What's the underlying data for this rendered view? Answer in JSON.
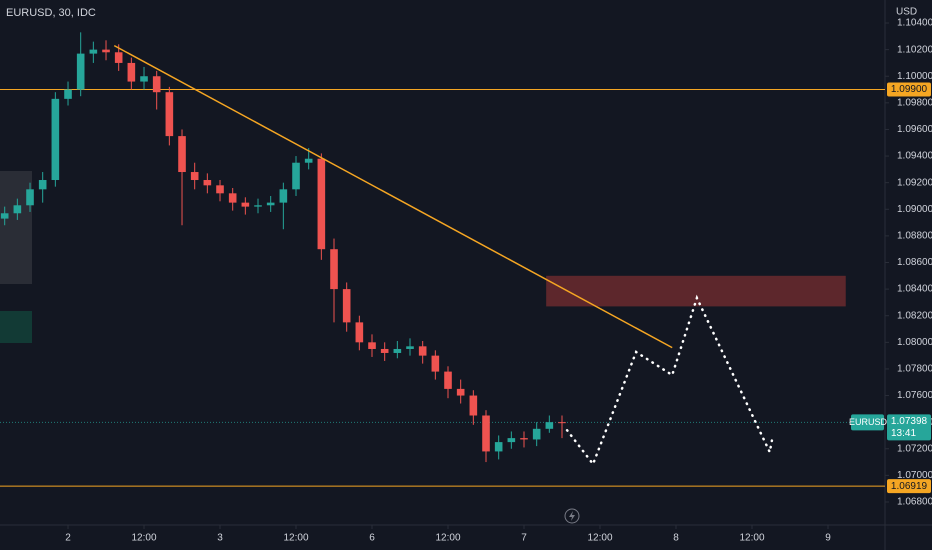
{
  "chart_data": {
    "type": "candlestick",
    "title": "EURUSD, 30, IDC",
    "y_axis_label": "USD",
    "up_color": "#26a69a",
    "down_color": "#ef5350",
    "xlim": [
      -10.74,
      129.0
    ],
    "ylim": [
      1.06627,
      1.10573
    ],
    "yticks": [
      {
        "value": 1.104,
        "label": "1.10400"
      },
      {
        "value": 1.102,
        "label": "1.10200"
      },
      {
        "value": 1.1,
        "label": "1.10000"
      },
      {
        "value": 1.098,
        "label": "1.09800"
      },
      {
        "value": 1.096,
        "label": "1.09600"
      },
      {
        "value": 1.094,
        "label": "1.09400"
      },
      {
        "value": 1.092,
        "label": "1.09200"
      },
      {
        "value": 1.09,
        "label": "1.09000"
      },
      {
        "value": 1.088,
        "label": "1.08800"
      },
      {
        "value": 1.086,
        "label": "1.08600"
      },
      {
        "value": 1.084,
        "label": "1.08400"
      },
      {
        "value": 1.082,
        "label": "1.08200"
      },
      {
        "value": 1.08,
        "label": "1.08000"
      },
      {
        "value": 1.078,
        "label": "1.07800"
      },
      {
        "value": 1.076,
        "label": "1.07600"
      },
      {
        "value": 1.074,
        "label": "1.07400"
      },
      {
        "value": 1.072,
        "label": "1.07200"
      },
      {
        "value": 1.07,
        "label": "1.07000"
      },
      {
        "value": 1.068,
        "label": "1.06800"
      }
    ],
    "xticks": [
      {
        "value": 0,
        "label": "2"
      },
      {
        "value": 12,
        "label": "12:00"
      },
      {
        "value": 24,
        "label": "3"
      },
      {
        "value": 36,
        "label": "12:00"
      },
      {
        "value": 48,
        "label": "6"
      },
      {
        "value": 60,
        "label": "12:00"
      },
      {
        "value": 72,
        "label": "7"
      },
      {
        "value": 84,
        "label": "12:00"
      },
      {
        "value": 96,
        "label": "8"
      },
      {
        "value": 108,
        "label": "12:00"
      },
      {
        "value": 120,
        "label": "9"
      }
    ],
    "x": [
      -10,
      -8,
      -6,
      -4,
      -2,
      0,
      2,
      4,
      6,
      8,
      10,
      12,
      14,
      16,
      18,
      20,
      22,
      24,
      26,
      28,
      30,
      32,
      34,
      36,
      38,
      40,
      42,
      44,
      46,
      48,
      50,
      52,
      54,
      56,
      58,
      60,
      62,
      64,
      66,
      68,
      70,
      72,
      74,
      76,
      78
    ],
    "open": [
      1.0893,
      1.0897,
      1.0903,
      1.0915,
      1.0922,
      1.0983,
      1.099,
      1.1017,
      1.102,
      1.1018,
      1.101,
      1.0996,
      1.1,
      1.0988,
      1.0955,
      1.0928,
      1.0922,
      1.0918,
      1.0912,
      1.0905,
      1.0902,
      1.0903,
      1.0905,
      1.0915,
      1.0935,
      1.0938,
      1.087,
      1.084,
      1.0815,
      1.08,
      1.0795,
      1.0792,
      1.0795,
      1.0797,
      1.079,
      1.0778,
      1.0765,
      1.076,
      1.0745,
      1.0718,
      1.0725,
      1.0728,
      1.0727,
      1.0735,
      1.074
    ],
    "high": [
      1.0902,
      1.0908,
      1.092,
      1.0928,
      1.0988,
      1.0996,
      1.1033,
      1.1026,
      1.1027,
      1.1024,
      1.1014,
      1.1007,
      1.1004,
      1.0992,
      1.096,
      1.0935,
      1.0927,
      1.0922,
      1.0916,
      1.0909,
      1.0908,
      1.091,
      1.092,
      1.094,
      1.0946,
      1.0942,
      1.0878,
      1.0845,
      1.082,
      1.0806,
      1.08,
      1.0801,
      1.0803,
      1.0801,
      1.0794,
      1.0782,
      1.0772,
      1.0764,
      1.0749,
      1.073,
      1.0733,
      1.0733,
      1.074,
      1.0745,
      1.0745
    ],
    "low": [
      1.0888,
      1.0892,
      1.0898,
      1.0905,
      1.0917,
      1.0978,
      1.0985,
      1.101,
      1.1012,
      1.1004,
      1.099,
      1.099,
      1.0975,
      1.0948,
      1.0888,
      1.0915,
      1.0912,
      1.0906,
      1.0899,
      1.0896,
      1.0897,
      1.0898,
      1.0885,
      1.091,
      1.093,
      1.0862,
      1.0815,
      1.0808,
      1.0794,
      1.0789,
      1.0786,
      1.0788,
      1.079,
      1.0784,
      1.0772,
      1.0758,
      1.0754,
      1.0738,
      1.071,
      1.0712,
      1.072,
      1.0721,
      1.0722,
      1.0732,
      1.0728
    ],
    "close": [
      1.0897,
      1.0903,
      1.0915,
      1.0922,
      1.0983,
      1.099,
      1.1017,
      1.102,
      1.1018,
      1.101,
      1.0996,
      1.1,
      1.0988,
      1.0955,
      1.0928,
      1.0922,
      1.0918,
      1.0912,
      1.0905,
      1.0902,
      1.0903,
      1.0905,
      1.0915,
      1.0935,
      1.0938,
      1.087,
      1.084,
      1.0815,
      1.08,
      1.0795,
      1.0792,
      1.0795,
      1.0797,
      1.079,
      1.0778,
      1.0765,
      1.076,
      1.0745,
      1.0718,
      1.0725,
      1.0728,
      1.0727,
      1.0735,
      1.074,
      1.07398
    ],
    "hlines": [
      {
        "value": 1.099,
        "value_label": "1.09900",
        "color": "#f5a623"
      },
      {
        "value": 1.06919,
        "value_label": "1.06919",
        "color": "#f5a623"
      }
    ],
    "last_price": {
      "symbol": "EURUSD",
      "value": 1.07398,
      "value_label": "1.07398",
      "countdown": "13:41",
      "color": "#26a69a"
    },
    "trendline": {
      "x": [
        7.3,
        95.4
      ],
      "y": [
        1.1023,
        1.0796
      ],
      "color": "#f5a623"
    },
    "zone": {
      "x": [
        75.5,
        122.8
      ],
      "y": [
        1.0827,
        1.085
      ],
      "color": "#6b2a2e"
    },
    "projection": {
      "x": [
        78.8,
        82.9,
        89.7,
        95.4,
        99.3,
        110.8,
        111.3
      ],
      "y": [
        1.07339,
        1.07085,
        1.07927,
        1.07754,
        1.08333,
        1.07175,
        1.07302
      ],
      "color": "#ffffff"
    }
  }
}
